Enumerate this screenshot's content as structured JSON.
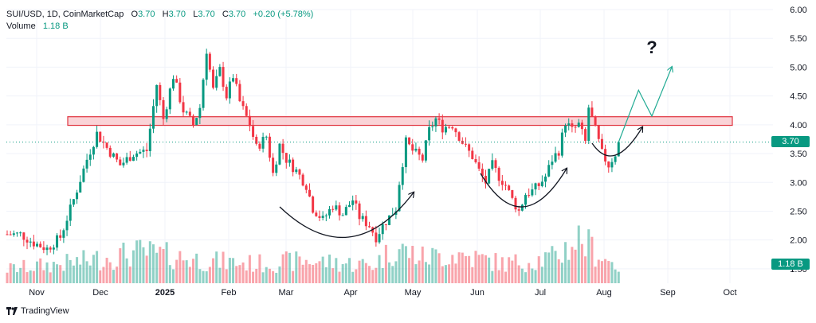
{
  "legend": {
    "symbol": "SUI/USD, 1D, CoinMarketCap",
    "o_label": "O",
    "o_value": "3.70",
    "h_label": "H",
    "h_value": "3.70",
    "l_label": "L",
    "l_value": "3.70",
    "c_label": "C",
    "c_value": "3.70",
    "change": "+0.20 (+5.78%)",
    "volume_label": "Volume",
    "volume_value": "1.18 B"
  },
  "badges": {
    "price": "3.70",
    "volume": "1.18 B"
  },
  "footer": {
    "brand": "TradingView"
  },
  "annotation": {
    "question": "?"
  },
  "colors": {
    "up": "#089981",
    "down": "#f23645",
    "zone_fill": "#f8c4c9",
    "zone_stroke": "#e0343f",
    "arrow": "#22ab94"
  },
  "chart_data": {
    "type": "candlestick",
    "title": "SUI/USD, 1D, CoinMarketCap",
    "y_ticks": [
      "6.00",
      "5.50",
      "5.00",
      "4.50",
      "4.00",
      "3.50",
      "3.00",
      "2.50",
      "2.00",
      "1.50"
    ],
    "ylim": [
      1.25,
      6.1
    ],
    "x_ticks": [
      "Nov",
      "Dec",
      "2025",
      "Feb",
      "Mar",
      "Apr",
      "May",
      "Jun",
      "Jul",
      "Aug",
      "Sep",
      "Oct"
    ],
    "current_price": 3.7,
    "resistance_zone": [
      3.99,
      4.14
    ],
    "close_path": [
      [
        0,
        2.1
      ],
      [
        4,
        2.1
      ],
      [
        8,
        1.95
      ],
      [
        12,
        1.85
      ],
      [
        16,
        2.05
      ],
      [
        20,
        2.7
      ],
      [
        24,
        3.4
      ],
      [
        27,
        3.85
      ],
      [
        30,
        3.6
      ],
      [
        34,
        3.3
      ],
      [
        38,
        3.5
      ],
      [
        42,
        3.55
      ],
      [
        45,
        4.7
      ],
      [
        47,
        4.1
      ],
      [
        50,
        4.85
      ],
      [
        53,
        4.25
      ],
      [
        56,
        4.0
      ],
      [
        58,
        4.3
      ],
      [
        60,
        5.3
      ],
      [
        62,
        4.6
      ],
      [
        64,
        4.95
      ],
      [
        66,
        4.5
      ],
      [
        68,
        4.85
      ],
      [
        70,
        4.4
      ],
      [
        73,
        4.0
      ],
      [
        75,
        3.6
      ],
      [
        78,
        3.8
      ],
      [
        80,
        3.15
      ],
      [
        82,
        3.65
      ],
      [
        84,
        3.4
      ],
      [
        87,
        3.2
      ],
      [
        90,
        2.95
      ],
      [
        92,
        2.55
      ],
      [
        95,
        2.35
      ],
      [
        98,
        2.6
      ],
      [
        101,
        2.45
      ],
      [
        104,
        2.7
      ],
      [
        106,
        2.4
      ],
      [
        109,
        2.25
      ],
      [
        111,
        2.05
      ],
      [
        113,
        2.25
      ],
      [
        115,
        2.4
      ],
      [
        117,
        2.55
      ],
      [
        118,
        3.0
      ],
      [
        120,
        3.7
      ],
      [
        122,
        3.55
      ],
      [
        125,
        3.4
      ],
      [
        127,
        3.9
      ],
      [
        129,
        4.1
      ],
      [
        131,
        3.95
      ],
      [
        134,
        4.0
      ],
      [
        136,
        3.8
      ],
      [
        138,
        3.6
      ],
      [
        140,
        3.45
      ],
      [
        142,
        3.2
      ],
      [
        144,
        3.0
      ],
      [
        146,
        3.3
      ],
      [
        148,
        3.1
      ],
      [
        150,
        2.95
      ],
      [
        152,
        2.7
      ],
      [
        154,
        2.5
      ],
      [
        156,
        2.8
      ],
      [
        158,
        2.85
      ],
      [
        160,
        2.95
      ],
      [
        162,
        3.1
      ],
      [
        164,
        3.4
      ],
      [
        166,
        3.55
      ],
      [
        168,
        4.05
      ],
      [
        170,
        3.9
      ],
      [
        172,
        4.0
      ],
      [
        174,
        3.7
      ],
      [
        175,
        4.3
      ],
      [
        177,
        3.9
      ],
      [
        179,
        3.5
      ],
      [
        181,
        3.3
      ],
      [
        183,
        3.5
      ],
      [
        184,
        3.7
      ]
    ],
    "volume_path": [
      [
        0,
        0.22
      ],
      [
        20,
        0.32
      ],
      [
        40,
        0.48
      ],
      [
        60,
        0.35
      ],
      [
        75,
        0.3
      ],
      [
        90,
        0.35
      ],
      [
        110,
        0.28
      ],
      [
        117,
        0.55
      ],
      [
        125,
        0.4
      ],
      [
        135,
        0.45
      ],
      [
        150,
        0.3
      ],
      [
        165,
        0.4
      ],
      [
        172,
        0.7
      ],
      [
        180,
        0.38
      ],
      [
        184,
        0.25
      ]
    ],
    "projection": [
      [
        184,
        3.7
      ],
      [
        190,
        4.6
      ],
      [
        194,
        4.15
      ],
      [
        200,
        5.0
      ]
    ]
  }
}
